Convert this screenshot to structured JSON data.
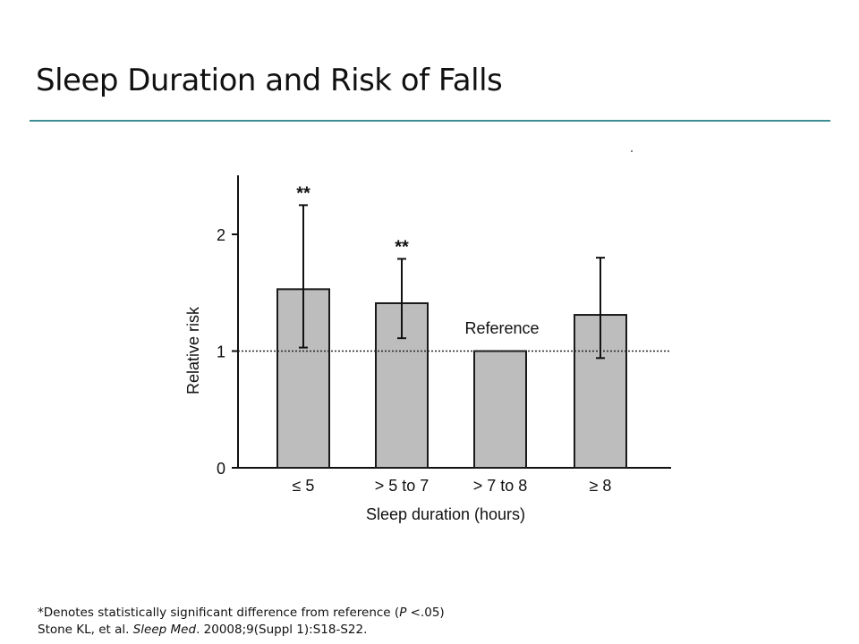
{
  "slide": {
    "title": "Sleep Duration and Risk of Falls"
  },
  "footnote": {
    "line1_prefix": "*Denotes statistically significant difference from reference (",
    "line1_p": "P",
    "line1_suffix": " <.05)",
    "line2_prefix": "Stone KL, et al. ",
    "line2_journal": "Sleep Med",
    "line2_suffix": ". 20008;9(Suppl 1):S18-S22."
  },
  "colors": {
    "rule": "#3f8e91",
    "bar_fill": "#bdbdbd",
    "bar_stroke": "#1a1a1a"
  },
  "chart_data": {
    "type": "bar",
    "title": "",
    "xlabel": "Sleep duration (hours)",
    "ylabel": "Relative risk",
    "categories": [
      "≤ 5",
      "> 5 to 7",
      "> 7 to 8",
      "≥ 8"
    ],
    "values": [
      1.53,
      1.41,
      1.0,
      1.31
    ],
    "error_low": [
      1.03,
      1.11,
      null,
      0.94
    ],
    "error_high": [
      2.25,
      1.79,
      null,
      1.8
    ],
    "significance": [
      "**",
      "**",
      "",
      ""
    ],
    "reference_label": "Reference",
    "reference_category": "> 7 to 8",
    "reference_line": 1,
    "ylim": [
      0,
      2.5
    ],
    "yticks": [
      0,
      1,
      2
    ],
    "grid": false,
    "legend": "none"
  }
}
